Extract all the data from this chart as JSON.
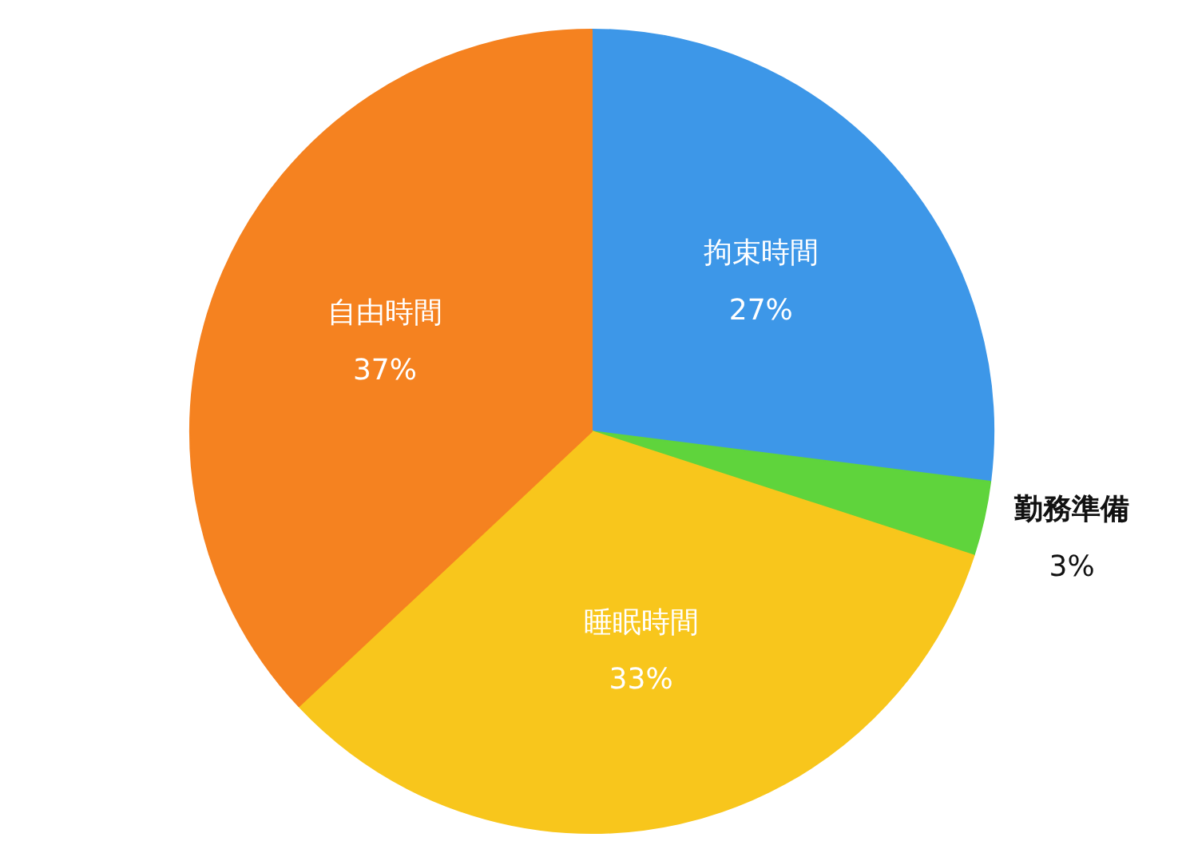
{
  "chart_data": {
    "type": "pie",
    "categories": [
      "拘束時間",
      "勤務準備",
      "睡眠時間",
      "自由時間"
    ],
    "values": [
      27,
      3,
      33,
      37
    ],
    "value_labels": [
      "27%",
      "3%",
      "33%",
      "37%"
    ],
    "colors": [
      "#3d97e8",
      "#5fd43c",
      "#f8c61c",
      "#f58220"
    ],
    "legend": false
  }
}
